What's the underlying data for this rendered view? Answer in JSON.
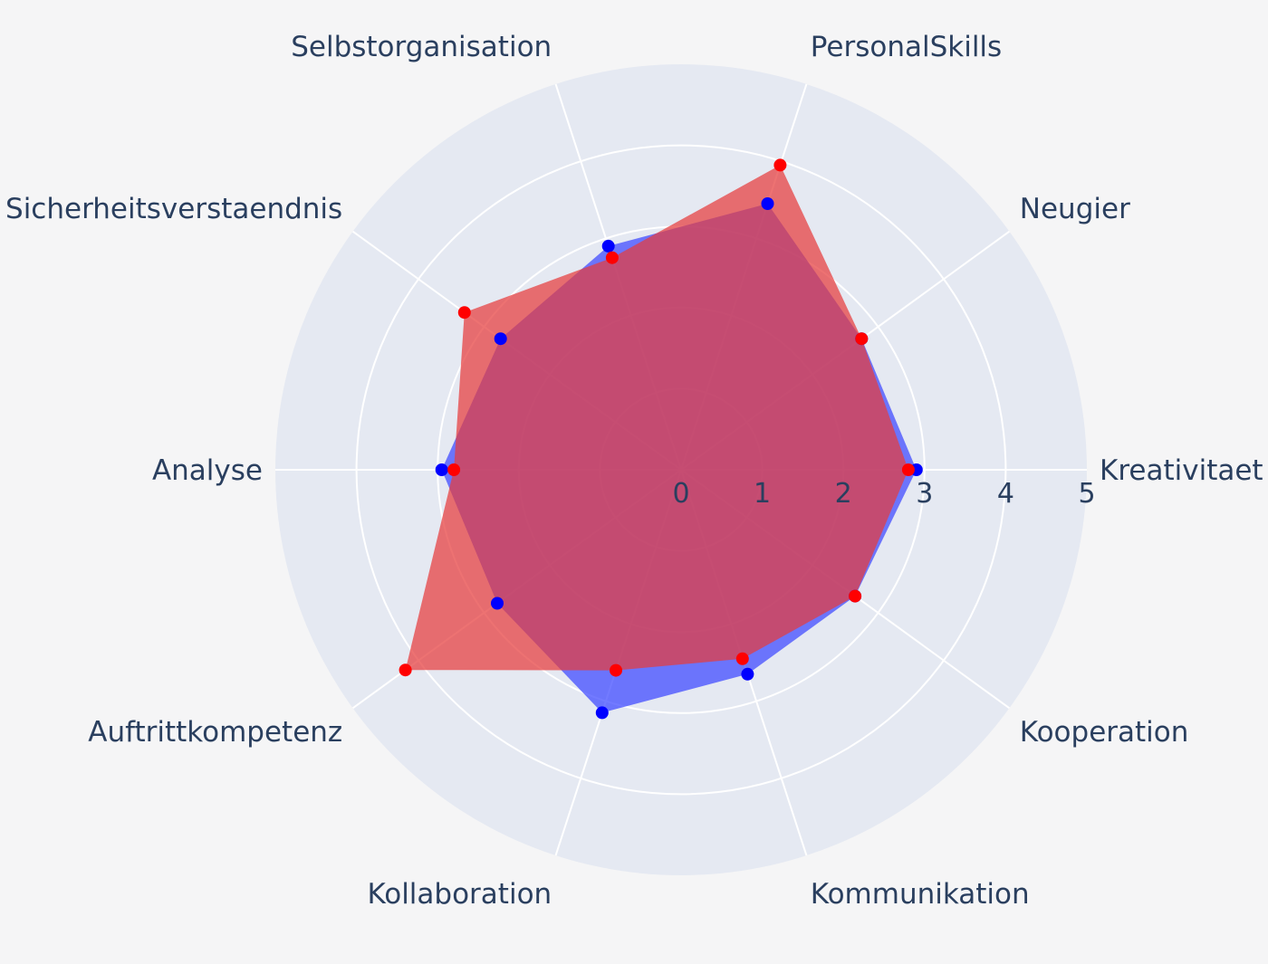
{
  "chart_data": {
    "type": "radar",
    "title": "",
    "categories": [
      "Kreativitaet",
      "Neugier",
      "PersonalSkills",
      "Selbstorganisation",
      "Sicherheitsverstaendnis",
      "Analyse",
      "Auftrittkompetenz",
      "Kollaboration",
      "Kommunikation",
      "Kooperation"
    ],
    "radial_range": [
      0,
      5
    ],
    "radial_ticks": [
      "0",
      "1",
      "2",
      "3",
      "4",
      "5"
    ],
    "grid": true,
    "legend": "none",
    "series": [
      {
        "color": "#0000ff",
        "fill_color": "rgba(60, 70, 255, 0.72)",
        "values": [
          2.9,
          2.75,
          3.45,
          2.9,
          2.75,
          2.95,
          2.8,
          3.15,
          2.65,
          2.65
        ]
      },
      {
        "color": "#ff0000",
        "fill_color": "rgba(230, 60, 60, 0.72)",
        "values": [
          2.8,
          2.75,
          3.95,
          2.75,
          3.3,
          2.8,
          4.2,
          2.6,
          2.45,
          2.65
        ]
      }
    ],
    "colors": {
      "polar_background": "#e5e9f2",
      "grid": "#ffffff",
      "page_background": "#f5f5f6",
      "text": "#2a3f5f"
    }
  }
}
